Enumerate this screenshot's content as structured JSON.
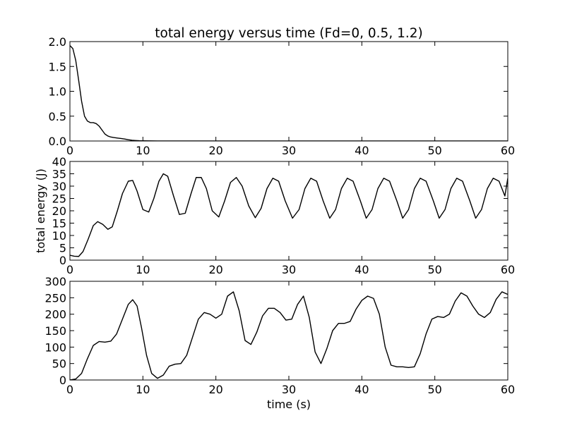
{
  "title": "total energy versus time (Fd=0, 0.5, 1.2)",
  "xlabel": "time (s)",
  "ylabel": "total energy (J)",
  "chart_data": [
    {
      "type": "line",
      "title": "total energy versus time (Fd=0, 0.5, 1.2)",
      "xlabel": "",
      "ylabel": "",
      "xlim": [
        0,
        60
      ],
      "ylim": [
        0,
        2.0
      ],
      "xticks": [
        0,
        10,
        20,
        30,
        40,
        50,
        60
      ],
      "yticks": [
        0.0,
        0.5,
        1.0,
        1.5,
        2.0
      ],
      "ytick_labels": [
        "0.0",
        "0.5",
        "1.0",
        "1.5",
        "2.0"
      ],
      "grid": false,
      "line_color": "#000000",
      "series": [
        {
          "x": [
            0,
            0.4,
            0.8,
            1.2,
            1.6,
            2.0,
            2.4,
            2.8,
            3.2,
            3.6,
            4.0,
            4.4,
            4.8,
            5.2,
            5.6,
            6.0,
            6.5,
            7.0,
            7.5,
            8.0,
            8.5,
            9.0,
            9.5,
            10.0,
            11.0,
            12.0,
            14.0,
            20.0,
            30.0,
            40.0,
            50.0,
            60.0
          ],
          "y": [
            1.92,
            1.86,
            1.62,
            1.22,
            0.8,
            0.5,
            0.4,
            0.37,
            0.37,
            0.35,
            0.3,
            0.22,
            0.14,
            0.1,
            0.08,
            0.07,
            0.06,
            0.05,
            0.04,
            0.025,
            0.015,
            0.01,
            0.006,
            0.004,
            0.002,
            0.001,
            0.0,
            0.0,
            0.0,
            0.0,
            0.0,
            0.0
          ]
        }
      ]
    },
    {
      "type": "line",
      "xlabel": "",
      "ylabel": "total energy (J)",
      "xlim": [
        0,
        60
      ],
      "ylim": [
        0,
        40
      ],
      "xticks": [
        0,
        10,
        20,
        30,
        40,
        50,
        60
      ],
      "yticks": [
        0,
        5,
        10,
        15,
        20,
        25,
        30,
        35,
        40
      ],
      "ytick_labels": [
        "0",
        "5",
        "10",
        "15",
        "20",
        "25",
        "30",
        "35",
        "40"
      ],
      "grid": false,
      "line_color": "#000000",
      "series": [
        {
          "x": [
            0.0,
            0.6,
            1.2,
            1.8,
            2.5,
            3.2,
            3.8,
            4.5,
            5.2,
            5.8,
            6.5,
            7.2,
            8.0,
            8.6,
            9.2,
            10.0,
            10.8,
            11.5,
            12.2,
            12.8,
            13.4,
            14.2,
            15.0,
            15.8,
            16.6,
            17.3,
            18.0,
            18.7,
            19.5,
            20.4,
            21.2,
            22.0,
            22.8,
            23.6,
            24.5,
            25.4,
            26.2,
            27.0,
            27.8,
            28.6,
            29.5,
            30.5,
            31.4,
            32.2,
            33.0,
            33.8,
            34.7,
            35.6,
            36.4,
            37.2,
            38.0,
            38.8,
            39.8,
            40.6,
            41.4,
            42.2,
            43.0,
            43.8,
            44.8,
            45.6,
            46.4,
            47.2,
            48.0,
            48.8,
            49.8,
            50.6,
            51.4,
            52.2,
            53.0,
            53.8,
            54.8,
            55.6,
            56.4,
            57.2,
            58.0,
            58.8,
            59.6,
            60.0
          ],
          "y": [
            2.0,
            1.6,
            1.5,
            3.5,
            8.5,
            14.0,
            15.6,
            14.5,
            12.5,
            13.5,
            20.0,
            27.0,
            32.0,
            32.3,
            28.0,
            20.5,
            19.5,
            25.0,
            32.0,
            35.0,
            34.0,
            26.0,
            18.5,
            19.0,
            27.0,
            33.5,
            33.5,
            29.0,
            20.0,
            17.5,
            24.0,
            31.5,
            33.5,
            30.0,
            22.0,
            17.2,
            21.0,
            29.0,
            33.2,
            32.0,
            24.0,
            17.0,
            20.5,
            29.0,
            33.2,
            32.0,
            24.0,
            17.0,
            20.5,
            29.0,
            33.2,
            32.0,
            24.0,
            17.0,
            20.5,
            29.0,
            33.2,
            32.0,
            24.0,
            17.0,
            20.5,
            29.0,
            33.2,
            32.0,
            24.0,
            17.0,
            20.5,
            29.0,
            33.2,
            32.0,
            24.0,
            17.0,
            20.5,
            29.0,
            33.2,
            32.0,
            26.0,
            33.2
          ]
        }
      ]
    },
    {
      "type": "line",
      "xlabel": "time (s)",
      "ylabel": "",
      "xlim": [
        0,
        60
      ],
      "ylim": [
        0,
        300
      ],
      "xticks": [
        0,
        10,
        20,
        30,
        40,
        50,
        60
      ],
      "yticks": [
        0,
        50,
        100,
        150,
        200,
        250,
        300
      ],
      "ytick_labels": [
        "0",
        "50",
        "100",
        "150",
        "200",
        "250",
        "300"
      ],
      "grid": false,
      "line_color": "#000000",
      "series": [
        {
          "x": [
            0.0,
            0.8,
            1.6,
            2.4,
            3.2,
            4.0,
            4.8,
            5.6,
            6.4,
            7.2,
            8.0,
            8.6,
            9.2,
            9.8,
            10.5,
            11.2,
            12.0,
            12.8,
            13.6,
            14.4,
            15.2,
            16.0,
            16.8,
            17.6,
            18.4,
            19.2,
            20.0,
            20.8,
            21.6,
            22.4,
            23.2,
            24.0,
            24.8,
            25.6,
            26.4,
            27.2,
            28.0,
            28.8,
            29.6,
            30.4,
            31.2,
            32.0,
            32.8,
            33.6,
            34.4,
            35.2,
            36.0,
            36.8,
            37.6,
            38.4,
            39.2,
            40.0,
            40.8,
            41.6,
            42.4,
            43.2,
            44.0,
            44.8,
            45.6,
            46.4,
            47.2,
            48.0,
            48.8,
            49.6,
            50.4,
            51.2,
            52.0,
            52.8,
            53.6,
            54.4,
            55.2,
            56.0,
            56.8,
            57.6,
            58.4,
            59.2,
            60.0
          ],
          "y": [
            0,
            3,
            20,
            65,
            105,
            117,
            115,
            118,
            140,
            185,
            230,
            244,
            225,
            160,
            75,
            20,
            5,
            15,
            42,
            48,
            50,
            75,
            130,
            185,
            205,
            200,
            188,
            200,
            255,
            268,
            210,
            120,
            108,
            145,
            195,
            218,
            218,
            205,
            182,
            185,
            230,
            255,
            190,
            85,
            50,
            95,
            150,
            172,
            172,
            178,
            215,
            242,
            255,
            248,
            200,
            100,
            45,
            40,
            40,
            38,
            40,
            80,
            140,
            185,
            193,
            190,
            200,
            240,
            265,
            255,
            225,
            200,
            190,
            205,
            245,
            268,
            260
          ]
        }
      ]
    }
  ]
}
